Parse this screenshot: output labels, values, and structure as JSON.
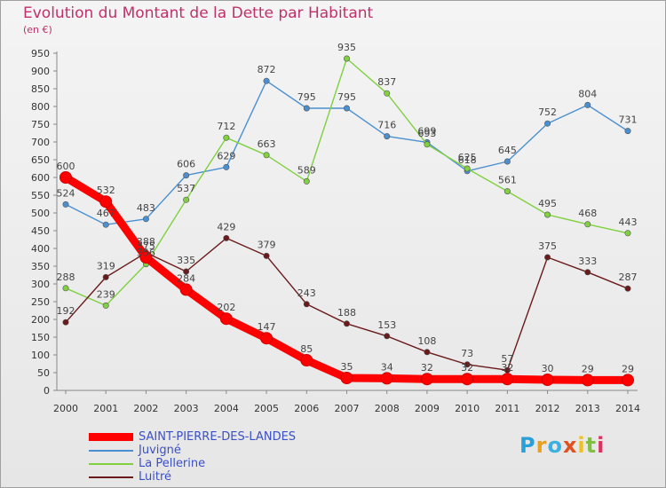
{
  "header": {
    "title": "Evolution du Montant de la Dette par Habitant",
    "subtitle": "(en €)"
  },
  "logo": {
    "letters": [
      "P",
      "r",
      "o",
      "x",
      "i",
      "t",
      "i"
    ],
    "colors": [
      "#2aa0d8",
      "#e8a020",
      "#3cb0e0",
      "#e05020",
      "#f0c020",
      "#80c040",
      "#e03060"
    ]
  },
  "chart_data": {
    "type": "line",
    "title": "Evolution du Montant de la Dette par Habitant",
    "ylabel": "(en €)",
    "x": [
      "2000",
      "2001",
      "2002",
      "2003",
      "2004",
      "2005",
      "2006",
      "2007",
      "2008",
      "2009",
      "2010",
      "2011",
      "2012",
      "2013",
      "2014"
    ],
    "yticks": [
      0,
      50,
      100,
      150,
      200,
      250,
      300,
      350,
      400,
      450,
      500,
      550,
      600,
      650,
      700,
      750,
      800,
      850,
      900,
      950
    ],
    "ylim": [
      0,
      950
    ],
    "grid": false,
    "legend_position": "bottom-left",
    "series": [
      {
        "name": "SAINT-PIERRE-DES-LANDES",
        "color": "#ff0000",
        "values": [
          600,
          532,
          375,
          284,
          202,
          147,
          85,
          35,
          34,
          32,
          32,
          32,
          30,
          29,
          29
        ]
      },
      {
        "name": "Juvigné",
        "color": "#4a90d0",
        "values": [
          524,
          467,
          483,
          606,
          629,
          872,
          795,
          795,
          716,
          699,
          618,
          645,
          752,
          804,
          731
        ]
      },
      {
        "name": "La Pellerine",
        "color": "#80d040",
        "values": [
          288,
          239,
          356,
          null,
          712,
          663,
          589,
          935,
          837,
          693,
          625,
          561,
          495,
          468,
          443
        ]
      },
      {
        "name": "Luitré",
        "color": "#6a1a1a",
        "values": [
          192,
          319,
          388,
          335,
          429,
          379,
          243,
          188,
          153,
          108,
          73,
          57,
          375,
          333,
          287
        ]
      }
    ],
    "extra_points": [
      {
        "series": "La Pellerine",
        "x": "2003",
        "value": 537
      }
    ]
  }
}
